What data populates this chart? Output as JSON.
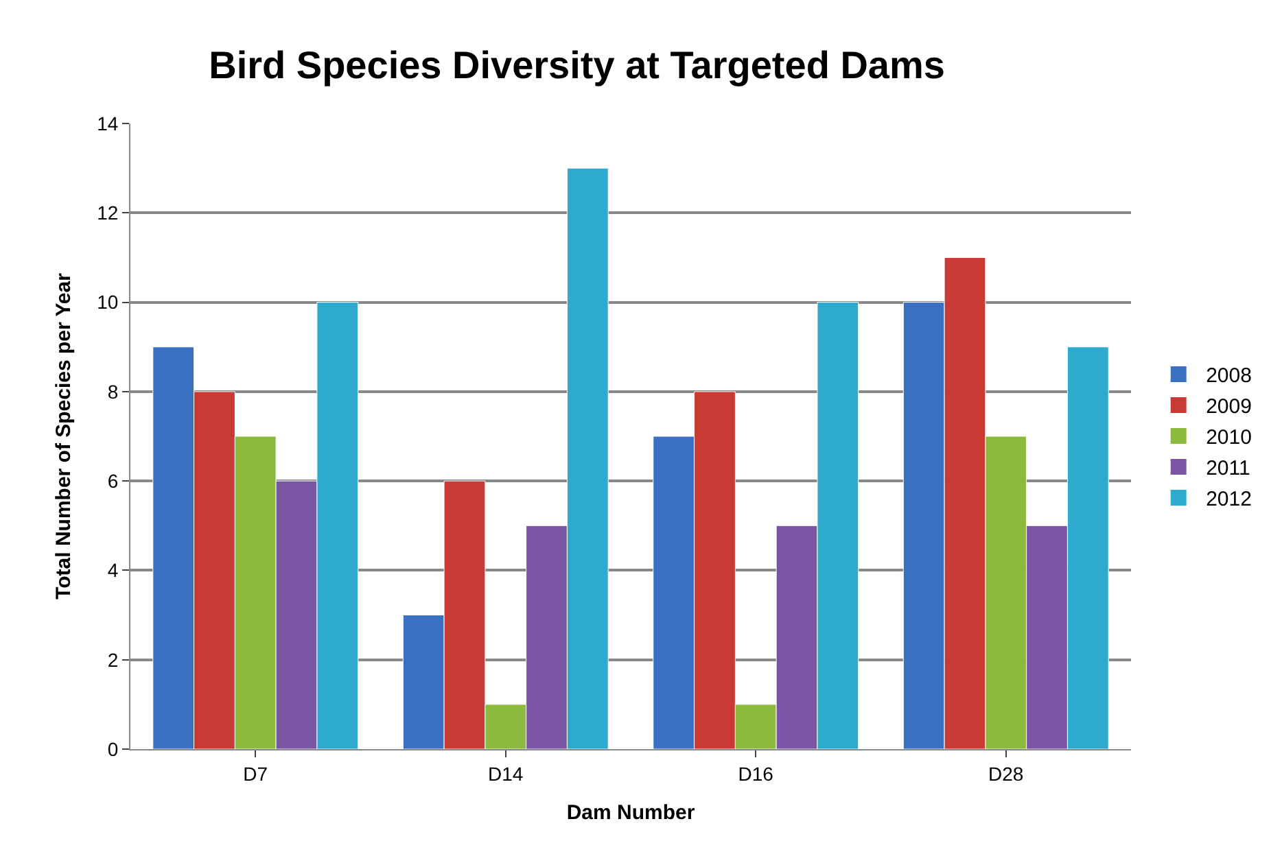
{
  "chart_data": {
    "type": "bar",
    "title": "Bird Species Diversity at Targeted Dams",
    "xlabel": "Dam Number",
    "ylabel": "Total Number of Species per Year",
    "categories": [
      "D7",
      "D14",
      "D16",
      "D28"
    ],
    "series": [
      {
        "name": "2008",
        "color": "#3b6fc1",
        "values": [
          9,
          3,
          7,
          10
        ]
      },
      {
        "name": "2009",
        "color": "#c93a35",
        "values": [
          8,
          6,
          8,
          11
        ]
      },
      {
        "name": "2010",
        "color": "#8dba3c",
        "values": [
          7,
          1,
          1,
          7
        ]
      },
      {
        "name": "2011",
        "color": "#7a55a3",
        "values": [
          6,
          5,
          5,
          5
        ]
      },
      {
        "name": "2012",
        "color": "#2daacd",
        "values": [
          10,
          13,
          10,
          9
        ]
      }
    ],
    "ylim": [
      0,
      14
    ],
    "yticks": [
      0,
      2,
      4,
      6,
      8,
      10,
      12,
      14
    ],
    "grid": "y",
    "legend": "right"
  }
}
